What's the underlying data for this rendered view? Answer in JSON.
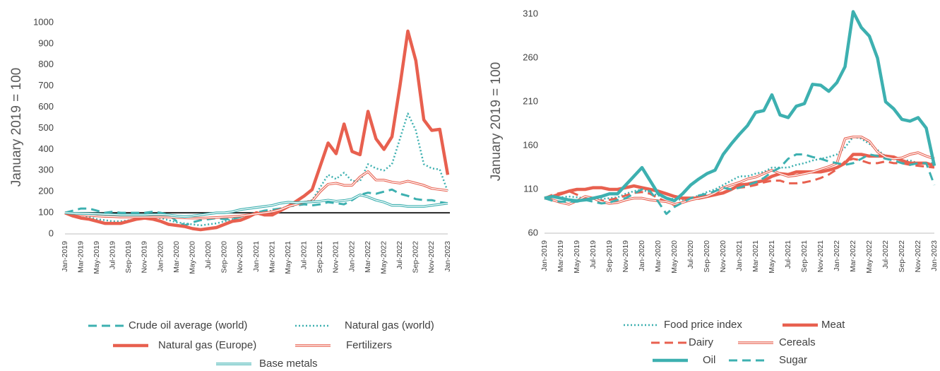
{
  "chart_data": [
    {
      "type": "line",
      "y_label": "January 2019 = 100",
      "categories": [
        "Jan-2019",
        null,
        "Mar-2019",
        null,
        "May-2019",
        null,
        "Jul-2019",
        null,
        "Sep-2019",
        null,
        "Nov-2019",
        null,
        "Jan-2020",
        null,
        "Mar-2020",
        null,
        "May-2020",
        null,
        "Jul-2020",
        null,
        "Sep-2020",
        null,
        "Nov-2020",
        null,
        "Jan-2021",
        null,
        "Mar-2021",
        null,
        "May-2021",
        null,
        "Jul-2021",
        null,
        "Sep-2021",
        null,
        "Nov-2021",
        null,
        "Jan-2022",
        null,
        "Mar-2022",
        null,
        "May-2022",
        null,
        "Jul-2022",
        null,
        "Sep-2022",
        null,
        "Nov-2022",
        null,
        "Jan-2023"
      ],
      "ylim": [
        0,
        1000
      ],
      "yticks": [
        0,
        100,
        200,
        300,
        400,
        500,
        600,
        700,
        800,
        900,
        1000
      ],
      "reference_line": 100,
      "series": [
        {
          "name": "Crude oil average (world)",
          "color": "#3db0b0",
          "style": "dashed",
          "values": [
            100,
            110,
            120,
            120,
            110,
            100,
            105,
            100,
            100,
            100,
            100,
            105,
            100,
            90,
            60,
            40,
            55,
            65,
            70,
            75,
            70,
            70,
            80,
            90,
            100,
            110,
            115,
            120,
            130,
            135,
            140,
            135,
            140,
            150,
            145,
            140,
            160,
            185,
            195,
            190,
            200,
            210,
            190,
            180,
            165,
            160,
            160,
            150,
            145
          ]
        },
        {
          "name": "Natural gas (world)",
          "color": "#3db0b0",
          "style": "dotted",
          "values": [
            100,
            95,
            90,
            80,
            70,
            65,
            60,
            60,
            65,
            70,
            75,
            80,
            75,
            65,
            55,
            50,
            45,
            40,
            45,
            50,
            60,
            70,
            80,
            90,
            100,
            105,
            110,
            120,
            130,
            140,
            150,
            160,
            220,
            280,
            260,
            290,
            250,
            250,
            330,
            310,
            300,
            330,
            450,
            570,
            490,
            330,
            310,
            305,
            200
          ]
        },
        {
          "name": "Natural gas (Europe)",
          "color": "#e8604f",
          "style": "thick",
          "values": [
            100,
            85,
            75,
            70,
            60,
            50,
            50,
            50,
            60,
            70,
            75,
            70,
            60,
            45,
            40,
            35,
            25,
            20,
            25,
            30,
            45,
            60,
            65,
            80,
            100,
            90,
            90,
            110,
            130,
            155,
            180,
            210,
            320,
            430,
            380,
            520,
            390,
            375,
            580,
            450,
            400,
            460,
            700,
            960,
            820,
            540,
            490,
            495,
            280
          ]
        },
        {
          "name": "Fertilizers",
          "color": "#e8604f",
          "style": "double",
          "values": [
            100,
            95,
            90,
            88,
            85,
            83,
            82,
            80,
            80,
            80,
            80,
            80,
            80,
            80,
            78,
            76,
            75,
            75,
            76,
            78,
            80,
            82,
            85,
            90,
            95,
            100,
            105,
            115,
            130,
            140,
            150,
            155,
            200,
            235,
            240,
            230,
            230,
            270,
            295,
            255,
            255,
            245,
            240,
            250,
            240,
            230,
            215,
            210,
            205
          ]
        },
        {
          "name": "Base metals",
          "color": "#3db0b0",
          "style": "double",
          "values": [
            100,
            98,
            97,
            96,
            95,
            93,
            92,
            90,
            90,
            90,
            90,
            92,
            92,
            90,
            85,
            82,
            85,
            90,
            95,
            100,
            100,
            105,
            115,
            120,
            125,
            130,
            135,
            145,
            150,
            148,
            150,
            152,
            155,
            160,
            155,
            158,
            165,
            185,
            175,
            160,
            150,
            135,
            135,
            130,
            130,
            130,
            135,
            140,
            145
          ]
        }
      ]
    },
    {
      "type": "line",
      "y_label": "January 2019 = 100",
      "categories": [
        "Jan-2019",
        null,
        "Mar-2019",
        null,
        "May-2019",
        null,
        "Jul-2019",
        null,
        "Sep-2019",
        null,
        "Nov-2019",
        null,
        "Jan-2020",
        null,
        "Mar-2020",
        null,
        "May-2020",
        null,
        "Jul-2020",
        null,
        "Sep-2020",
        null,
        "Nov-2020",
        null,
        "Jan-2021",
        null,
        "Mar-2021",
        null,
        "May-2021",
        null,
        "Jul-2021",
        null,
        "Sep-2021",
        null,
        "Nov-2021",
        null,
        "Jan-2022",
        null,
        "Mar-2022",
        null,
        "May-2022",
        null,
        "Jul-2022",
        null,
        "Sep-2022",
        null,
        "Nov-2022",
        null,
        "Jan-2023"
      ],
      "ylim": [
        60,
        315
      ],
      "yticks": [
        60,
        110,
        160,
        210,
        260,
        310
      ],
      "series": [
        {
          "name": "Food price index",
          "color": "#3db0b0",
          "style": "dotted",
          "values": [
            100,
            102,
            101,
            102,
            101,
            100,
            99,
            99,
            100,
            101,
            105,
            108,
            110,
            106,
            103,
            100,
            99,
            98,
            100,
            103,
            107,
            110,
            115,
            120,
            125,
            125,
            128,
            130,
            135,
            135,
            135,
            138,
            140,
            143,
            145,
            147,
            150,
            158,
            170,
            168,
            162,
            155,
            148,
            145,
            143,
            143,
            140,
            140,
            140
          ]
        },
        {
          "name": "Meat",
          "color": "#e8604f",
          "style": "thick",
          "values": [
            100,
            102,
            105,
            108,
            110,
            110,
            112,
            112,
            110,
            110,
            112,
            114,
            112,
            110,
            108,
            105,
            102,
            100,
            100,
            100,
            102,
            104,
            106,
            110,
            115,
            116,
            118,
            120,
            125,
            128,
            127,
            130,
            130,
            130,
            130,
            132,
            135,
            140,
            150,
            150,
            148,
            148,
            148,
            147,
            143,
            140,
            140,
            140,
            137
          ]
        },
        {
          "name": "Dairy",
          "color": "#e8604f",
          "style": "dashed",
          "values": [
            100,
            104,
            106,
            108,
            104,
            100,
            99,
            97,
            98,
            100,
            103,
            106,
            107,
            105,
            100,
            96,
            92,
            96,
            100,
            102,
            103,
            105,
            107,
            110,
            112,
            113,
            115,
            118,
            120,
            120,
            117,
            117,
            118,
            120,
            123,
            127,
            133,
            142,
            145,
            143,
            140,
            140,
            142,
            140,
            140,
            138,
            137,
            136,
            135
          ]
        },
        {
          "name": "Cereals",
          "color": "#e8604f",
          "style": "double",
          "values": [
            100,
            98,
            95,
            93,
            97,
            102,
            100,
            96,
            94,
            95,
            98,
            100,
            100,
            98,
            97,
            96,
            93,
            95,
            98,
            100,
            102,
            106,
            112,
            115,
            118,
            122,
            124,
            128,
            132,
            128,
            125,
            126,
            128,
            130,
            133,
            136,
            140,
            168,
            170,
            170,
            165,
            153,
            147,
            145,
            146,
            150,
            152,
            148,
            145
          ]
        },
        {
          "name": "Oil",
          "color": "#3db0b0",
          "style": "thick",
          "values": [
            100,
            102,
            100,
            98,
            97,
            98,
            100,
            102,
            105,
            105,
            115,
            125,
            135,
            120,
            105,
            100,
            97,
            105,
            115,
            122,
            128,
            132,
            150,
            162,
            173,
            183,
            198,
            200,
            218,
            195,
            192,
            205,
            208,
            230,
            229,
            222,
            232,
            250,
            313,
            295,
            285,
            260,
            210,
            202,
            190,
            188,
            192,
            180,
            137
          ]
        },
        {
          "name": "Sugar",
          "color": "#3db0b0",
          "style": "dashed",
          "values": [
            100,
            97,
            96,
            96,
            96,
            98,
            96,
            94,
            95,
            98,
            100,
            105,
            110,
            108,
            96,
            82,
            90,
            95,
            100,
            103,
            105,
            108,
            112,
            110,
            112,
            115,
            118,
            123,
            130,
            135,
            145,
            150,
            150,
            147,
            145,
            142,
            140,
            138,
            140,
            145,
            150,
            148,
            145,
            143,
            140,
            138,
            140,
            140,
            115
          ]
        }
      ]
    }
  ]
}
